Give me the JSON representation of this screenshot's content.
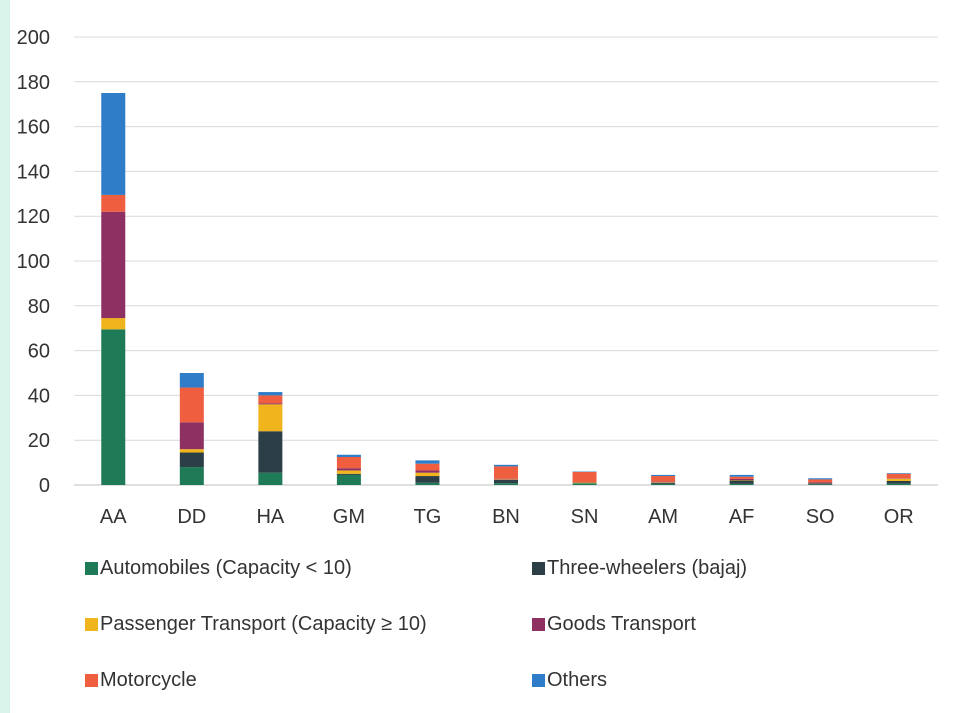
{
  "chart_data": {
    "type": "bar",
    "stacked": true,
    "title": "",
    "xlabel": "",
    "ylabel": "",
    "ylim": [
      0,
      200
    ],
    "y_ticks": [
      0,
      20,
      40,
      60,
      80,
      100,
      120,
      140,
      160,
      180,
      200
    ],
    "grid": true,
    "legend_position": "bottom",
    "categories": [
      "AA",
      "DD",
      "HA",
      "GM",
      "TG",
      "BN",
      "SN",
      "AM",
      "AF",
      "SO",
      "OR"
    ],
    "series": [
      {
        "name": "Automobiles (Capacity < 10)",
        "color": "#1f7a57",
        "values": [
          69.5,
          8,
          5.5,
          4.5,
          1,
          0.8,
          0.8,
          0.5,
          0.5,
          0.3,
          0.6
        ]
      },
      {
        "name": "Three-wheelers (bajaj)",
        "color": "#2c3e46",
        "values": [
          0,
          6.5,
          18.5,
          0.5,
          3,
          1.5,
          0,
          0.5,
          1.5,
          0.4,
          1.2
        ]
      },
      {
        "name": "Passenger Transport (Capacity ≥ 10)",
        "color": "#f0b41c",
        "values": [
          5,
          1.5,
          12,
          1.5,
          1.5,
          0.2,
          0.3,
          0.2,
          0.2,
          0.1,
          1
        ]
      },
      {
        "name": "Goods Transport",
        "color": "#8e3062",
        "values": [
          47.5,
          12,
          0.5,
          1,
          1,
          0.3,
          0.2,
          0.3,
          0.5,
          0.4,
          0.2
        ]
      },
      {
        "name": "Motorcycle",
        "color": "#ee5e3f",
        "values": [
          7.5,
          15.5,
          3.5,
          5,
          3,
          5.5,
          4.5,
          2.5,
          1,
          1.3,
          2
        ]
      },
      {
        "name": "Others",
        "color": "#2f7dc9",
        "values": [
          45.5,
          6.5,
          1.5,
          1,
          1.5,
          0.7,
          0.2,
          0.5,
          0.8,
          0.5,
          0.3
        ]
      }
    ]
  }
}
